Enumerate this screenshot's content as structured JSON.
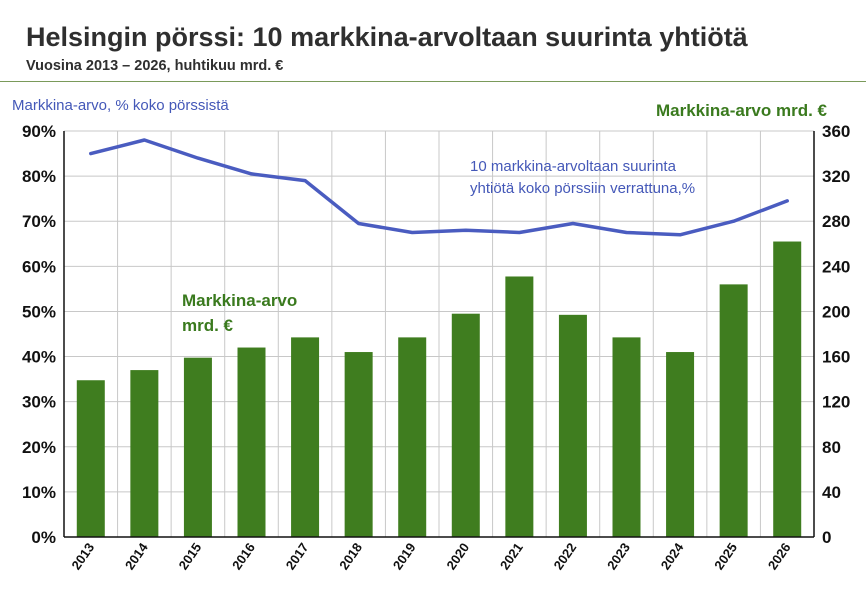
{
  "header": {
    "title": "Helsingin pörssi: 10 markkina-arvoltaan suurinta yhtiötä",
    "subtitle": "Vuosina 2013 – 2026, huhtikuu mrd. €"
  },
  "chart_data": {
    "type": "bar",
    "title": "Helsingin pörssi: 10 markkina-arvoltaan suurinta yhtiötä",
    "subtitle": "Vuosina 2013 – 2026, huhtikuu mrd. €",
    "categories": [
      "2013",
      "2014",
      "2015",
      "2016",
      "2017",
      "2018",
      "2019",
      "2020",
      "2021",
      "2022",
      "2023",
      "2024",
      "2025",
      "2026"
    ],
    "series": [
      {
        "name": "Markkina-arvo mrd. €",
        "type": "bar",
        "axis": "right",
        "color": "#3f7d1f",
        "values": [
          139,
          148,
          159,
          168,
          177,
          164,
          177,
          198,
          231,
          197,
          177,
          164,
          224,
          262
        ]
      },
      {
        "name": "10 markkina-arvoltaan suurinta yhtiötä koko pörssiin verrattuna,%",
        "type": "line",
        "axis": "left",
        "color": "#4a5cc0",
        "values": [
          85.0,
          88.0,
          84.0,
          80.5,
          79.0,
          69.5,
          67.5,
          68.0,
          67.5,
          69.5,
          67.5,
          67.0,
          70.0,
          74.5
        ]
      }
    ],
    "left_axis": {
      "label": "Markkina-arvo, % koko pörssistä",
      "ylim": [
        0,
        90
      ],
      "ticks": [
        "0%",
        "10%",
        "20%",
        "30%",
        "40%",
        "50%",
        "60%",
        "70%",
        "80%",
        "90%"
      ]
    },
    "right_axis": {
      "label": "Markkina-arvo mrd. €",
      "ylim": [
        0,
        360
      ],
      "ticks": [
        "0",
        "40",
        "80",
        "120",
        "160",
        "200",
        "240",
        "280",
        "320",
        "360"
      ]
    },
    "annotations": {
      "line_label": [
        "10 markkina-arvoltaan suurinta",
        "yhtiötä koko pörssiin verrattuna,%"
      ],
      "bar_label": [
        "Markkina-arvo",
        "mrd. €"
      ]
    },
    "grid": true,
    "legend": "none"
  }
}
